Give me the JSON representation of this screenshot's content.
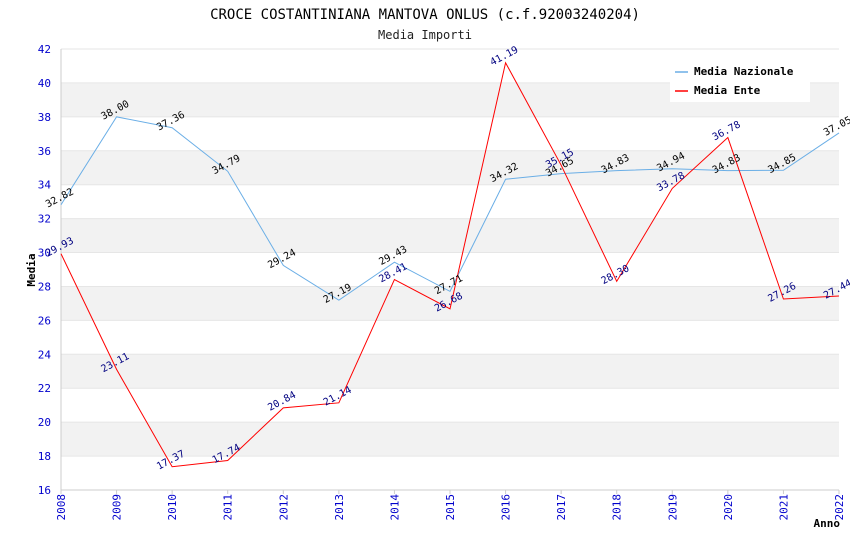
{
  "chart_data": {
    "type": "line",
    "title": "CROCE COSTANTINIANA MANTOVA ONLUS (c.f.92003240204)",
    "subtitle": "Media Importi",
    "xlabel": "Anno",
    "ylabel": "Media",
    "x": [
      "2008",
      "2009",
      "2010",
      "2011",
      "2012",
      "2013",
      "2014",
      "2015",
      "2016",
      "2017",
      "2018",
      "2019",
      "2020",
      "2021",
      "2022"
    ],
    "ylim": [
      16,
      42
    ],
    "yticks": [
      16,
      18,
      20,
      22,
      24,
      26,
      28,
      30,
      32,
      34,
      36,
      38,
      40,
      42
    ],
    "grid": "horizontal alternating bands",
    "legend_position": "top-right",
    "series": [
      {
        "name": "Media Nazionale",
        "color": "#6aaee6",
        "values": [
          32.82,
          38.0,
          37.36,
          34.79,
          29.24,
          27.19,
          29.43,
          27.71,
          34.32,
          34.65,
          34.83,
          34.94,
          34.83,
          34.85,
          37.05
        ],
        "labels": [
          "32.82",
          "38.00",
          "37.36",
          "34.79",
          "29.24",
          "27.19",
          "29.43",
          "27.71",
          "34.32",
          "34.65",
          "34.83",
          "34.94",
          "34.83",
          "34.85",
          "37.05"
        ]
      },
      {
        "name": "Media Ente",
        "color": "#ff0000",
        "values": [
          29.93,
          23.11,
          17.37,
          17.74,
          20.84,
          21.14,
          28.41,
          26.68,
          41.19,
          35.15,
          28.3,
          33.78,
          36.78,
          27.26,
          27.44
        ],
        "labels": [
          "29.93",
          "23.11",
          "17.37",
          "17.74",
          "20.84",
          "21.14",
          "28.41",
          "26.68",
          "41.19",
          "35.15",
          "28.30",
          "33.78",
          "36.78",
          "27.26",
          "27.44"
        ]
      }
    ]
  }
}
